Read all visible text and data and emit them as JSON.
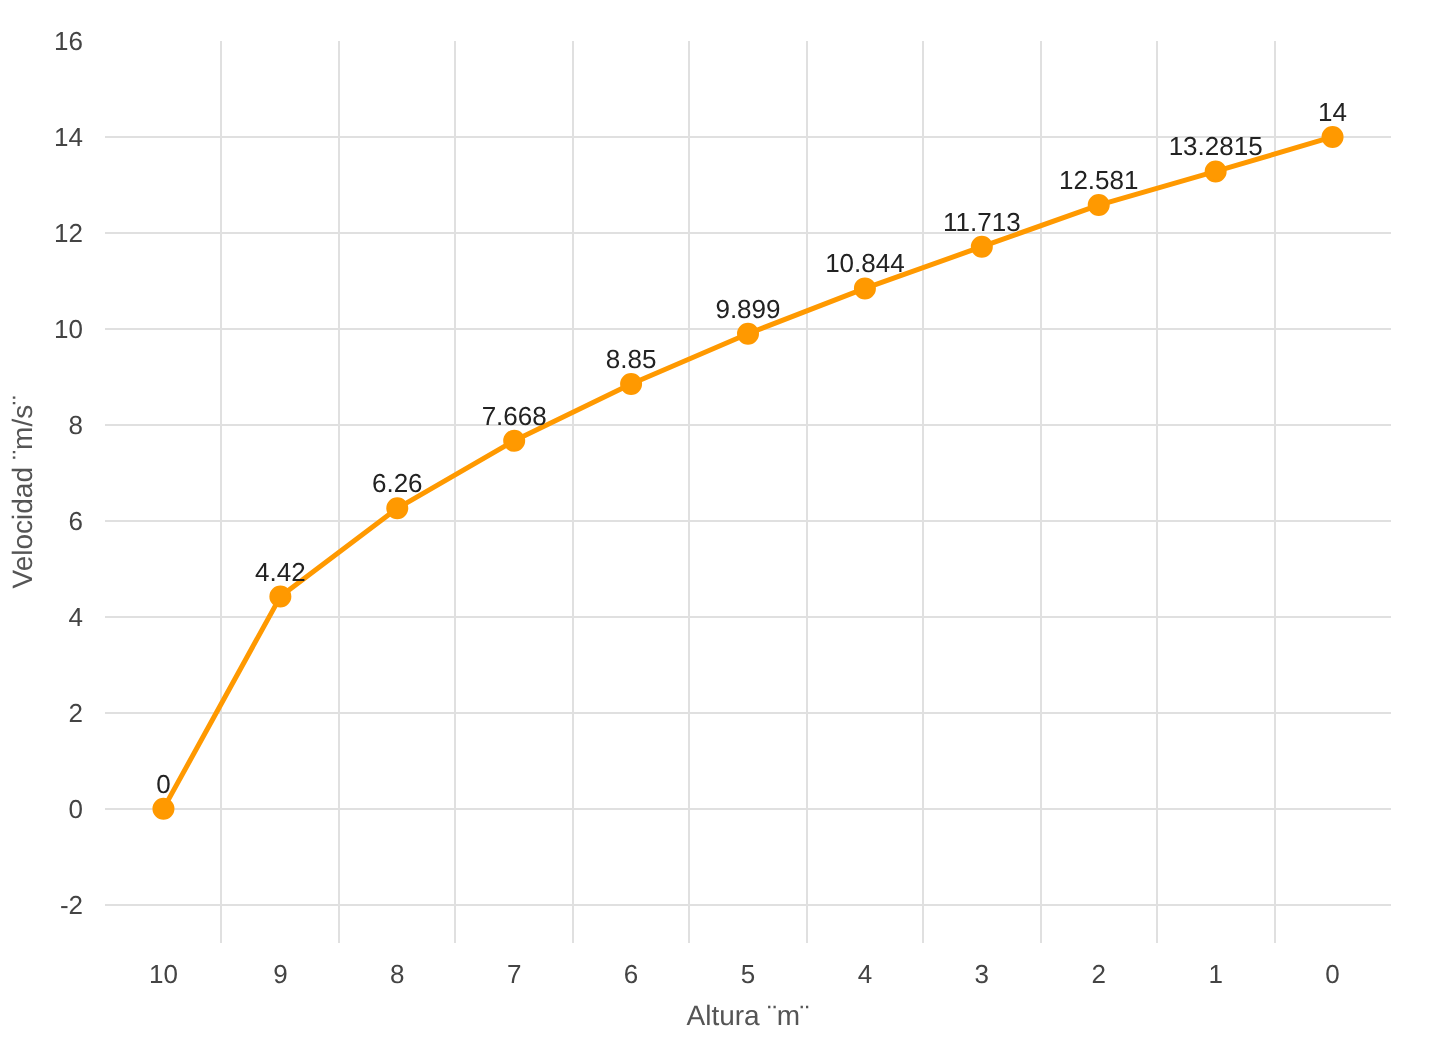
{
  "chart_data": {
    "type": "line",
    "xlabel": "Altura ¨m¨",
    "ylabel": "Velocidad ¨m/s¨",
    "categories": [
      "10",
      "9",
      "8",
      "7",
      "6",
      "5",
      "4",
      "3",
      "2",
      "1",
      "0"
    ],
    "series": [
      {
        "color": "#ff9900",
        "values": [
          0,
          4.42,
          6.26,
          7.668,
          8.85,
          9.899,
          10.844,
          11.713,
          12.581,
          13.2815,
          14
        ]
      }
    ],
    "ylim": [
      -2.8,
      16
    ],
    "yticks": [
      -2,
      0,
      2,
      4,
      6,
      8,
      10,
      12,
      14,
      16
    ],
    "grid": true,
    "marker": "circle",
    "data_labels": true
  }
}
